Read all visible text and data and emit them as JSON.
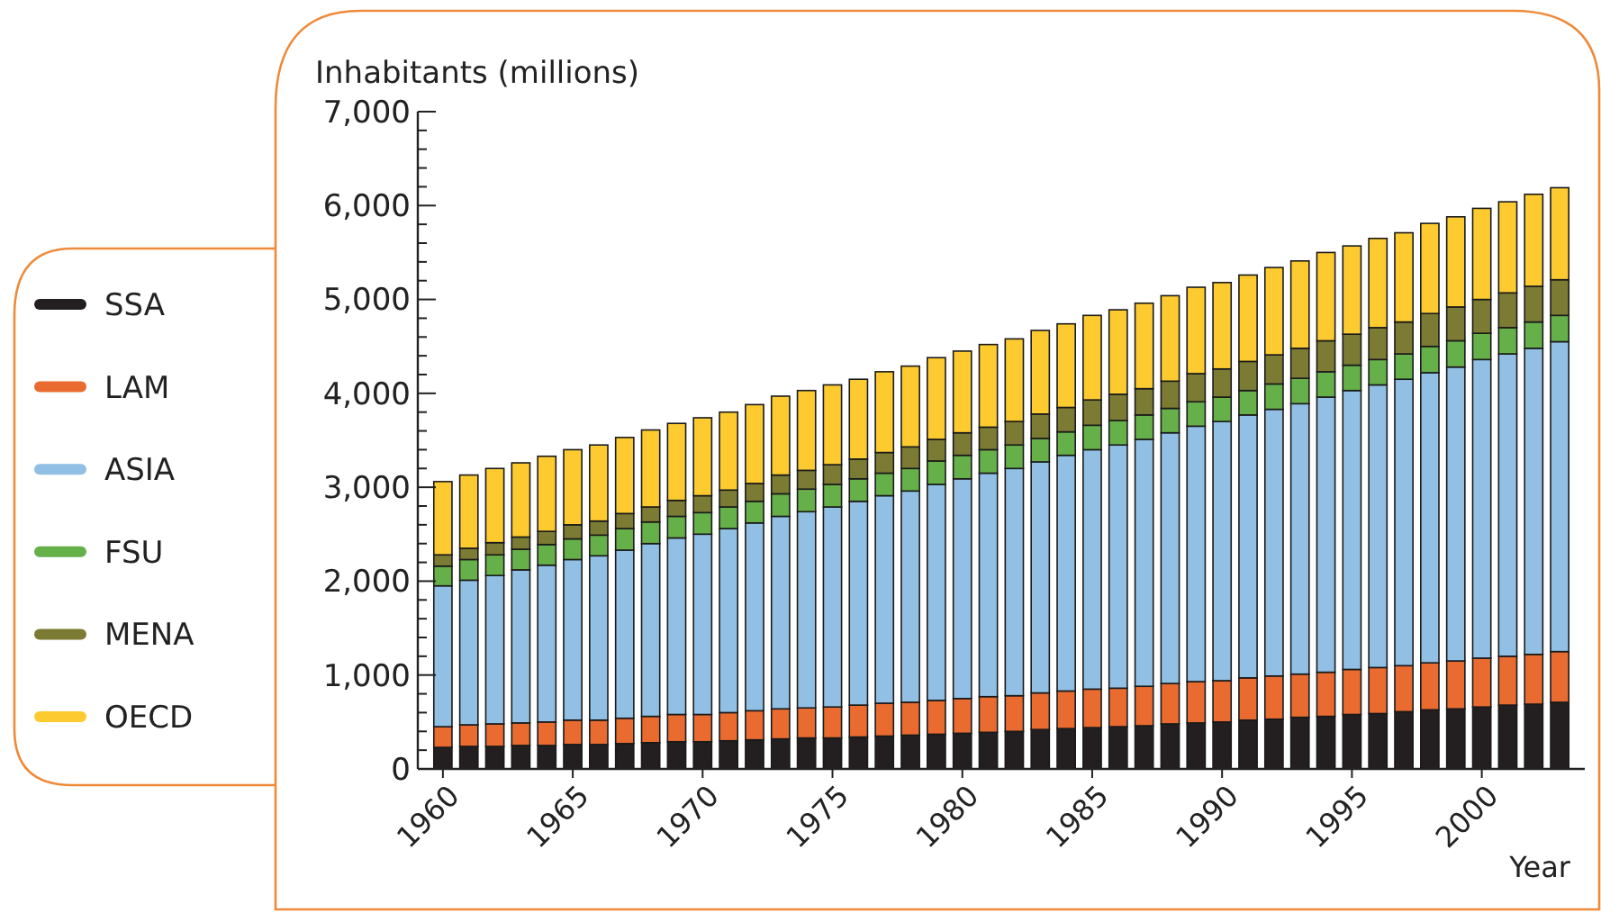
{
  "chart_data": {
    "type": "bar",
    "stacked": true,
    "ylabel": "Inhabitants (millions)",
    "xlabel": "Year",
    "categories": [
      "1960",
      null,
      null,
      null,
      null,
      "1965",
      null,
      null,
      null,
      null,
      "1970",
      null,
      null,
      null,
      null,
      "1975",
      null,
      null,
      null,
      null,
      "1980",
      null,
      null,
      null,
      null,
      "1985",
      null,
      null,
      null,
      null,
      "1990",
      null,
      null,
      null,
      null,
      "1995",
      null,
      null,
      null,
      null,
      "2000",
      null,
      null,
      null
    ],
    "ylim": [
      0,
      7000
    ],
    "yticks": [
      {
        "value": 0,
        "label": "0"
      },
      {
        "value": 200,
        "label": null
      },
      {
        "value": 400,
        "label": null
      },
      {
        "value": 600,
        "label": null
      },
      {
        "value": 800,
        "label": null
      },
      {
        "value": 1000,
        "label": "1,000"
      },
      {
        "value": 1200,
        "label": null
      },
      {
        "value": 1400,
        "label": null
      },
      {
        "value": 1600,
        "label": null
      },
      {
        "value": 1800,
        "label": null
      },
      {
        "value": 2000,
        "label": "2,000"
      },
      {
        "value": 2200,
        "label": null
      },
      {
        "value": 2400,
        "label": null
      },
      {
        "value": 2600,
        "label": null
      },
      {
        "value": 2800,
        "label": null
      },
      {
        "value": 3000,
        "label": "3,000"
      },
      {
        "value": 3200,
        "label": null
      },
      {
        "value": 3400,
        "label": null
      },
      {
        "value": 3600,
        "label": null
      },
      {
        "value": 3800,
        "label": null
      },
      {
        "value": 4000,
        "label": "4,000"
      },
      {
        "value": 4200,
        "label": null
      },
      {
        "value": 4400,
        "label": null
      },
      {
        "value": 4600,
        "label": null
      },
      {
        "value": 4800,
        "label": null
      },
      {
        "value": 5000,
        "label": "5,000"
      },
      {
        "value": 5200,
        "label": null
      },
      {
        "value": 5400,
        "label": null
      },
      {
        "value": 5600,
        "label": null
      },
      {
        "value": 5800,
        "label": null
      },
      {
        "value": 6000,
        "label": "6,000"
      },
      {
        "value": 6200,
        "label": null
      },
      {
        "value": 6400,
        "label": null
      },
      {
        "value": 6600,
        "label": null
      },
      {
        "value": 6800,
        "label": null
      },
      {
        "value": 7000,
        "label": "7,000"
      }
    ],
    "legend": "left",
    "grid": false,
    "series": [
      {
        "name": "SSA",
        "color": "#231f20",
        "values": [
          230,
          240,
          240,
          250,
          250,
          260,
          260,
          270,
          280,
          290,
          290,
          300,
          310,
          320,
          330,
          330,
          340,
          350,
          360,
          370,
          380,
          390,
          400,
          420,
          430,
          440,
          450,
          460,
          480,
          490,
          500,
          520,
          530,
          550,
          560,
          580,
          590,
          610,
          630,
          640,
          660,
          680,
          690,
          710
        ]
      },
      {
        "name": "LAM",
        "color": "#e96b30",
        "values": [
          220,
          230,
          240,
          240,
          250,
          260,
          260,
          270,
          280,
          290,
          290,
          300,
          310,
          320,
          320,
          330,
          340,
          350,
          350,
          360,
          370,
          380,
          380,
          390,
          400,
          410,
          410,
          420,
          430,
          440,
          440,
          450,
          460,
          460,
          470,
          480,
          490,
          490,
          500,
          510,
          520,
          520,
          530,
          540
        ]
      },
      {
        "name": "ASIA",
        "color": "#92c0e4",
        "values": [
          1500,
          1540,
          1580,
          1630,
          1670,
          1710,
          1750,
          1790,
          1840,
          1880,
          1920,
          1960,
          2000,
          2050,
          2090,
          2130,
          2170,
          2210,
          2250,
          2300,
          2340,
          2380,
          2420,
          2460,
          2510,
          2550,
          2590,
          2630,
          2670,
          2720,
          2760,
          2800,
          2840,
          2880,
          2930,
          2970,
          3010,
          3050,
          3090,
          3130,
          3180,
          3220,
          3260,
          3300
        ]
      },
      {
        "name": "FSU",
        "color": "#66b04a",
        "values": [
          210,
          220,
          220,
          220,
          220,
          220,
          220,
          230,
          230,
          230,
          230,
          230,
          230,
          240,
          240,
          240,
          240,
          240,
          240,
          250,
          250,
          250,
          250,
          250,
          250,
          260,
          260,
          260,
          260,
          260,
          260,
          260,
          270,
          270,
          270,
          270,
          270,
          270,
          280,
          280,
          280,
          280,
          280,
          280
        ]
      },
      {
        "name": "MENA",
        "color": "#7b7b34",
        "values": [
          120,
          120,
          130,
          130,
          140,
          150,
          150,
          160,
          160,
          170,
          180,
          180,
          190,
          200,
          200,
          210,
          210,
          220,
          230,
          230,
          240,
          240,
          250,
          260,
          260,
          270,
          280,
          280,
          290,
          300,
          300,
          310,
          310,
          320,
          330,
          330,
          340,
          340,
          350,
          360,
          360,
          370,
          380,
          380
        ]
      },
      {
        "name": "OECD",
        "color": "#fdcb30",
        "values": [
          780,
          780,
          790,
          790,
          800,
          800,
          810,
          810,
          820,
          820,
          830,
          830,
          840,
          840,
          850,
          850,
          850,
          860,
          860,
          870,
          870,
          880,
          880,
          890,
          890,
          900,
          900,
          910,
          910,
          920,
          920,
          920,
          930,
          930,
          940,
          940,
          950,
          950,
          960,
          960,
          970,
          970,
          980,
          980
        ]
      }
    ]
  }
}
